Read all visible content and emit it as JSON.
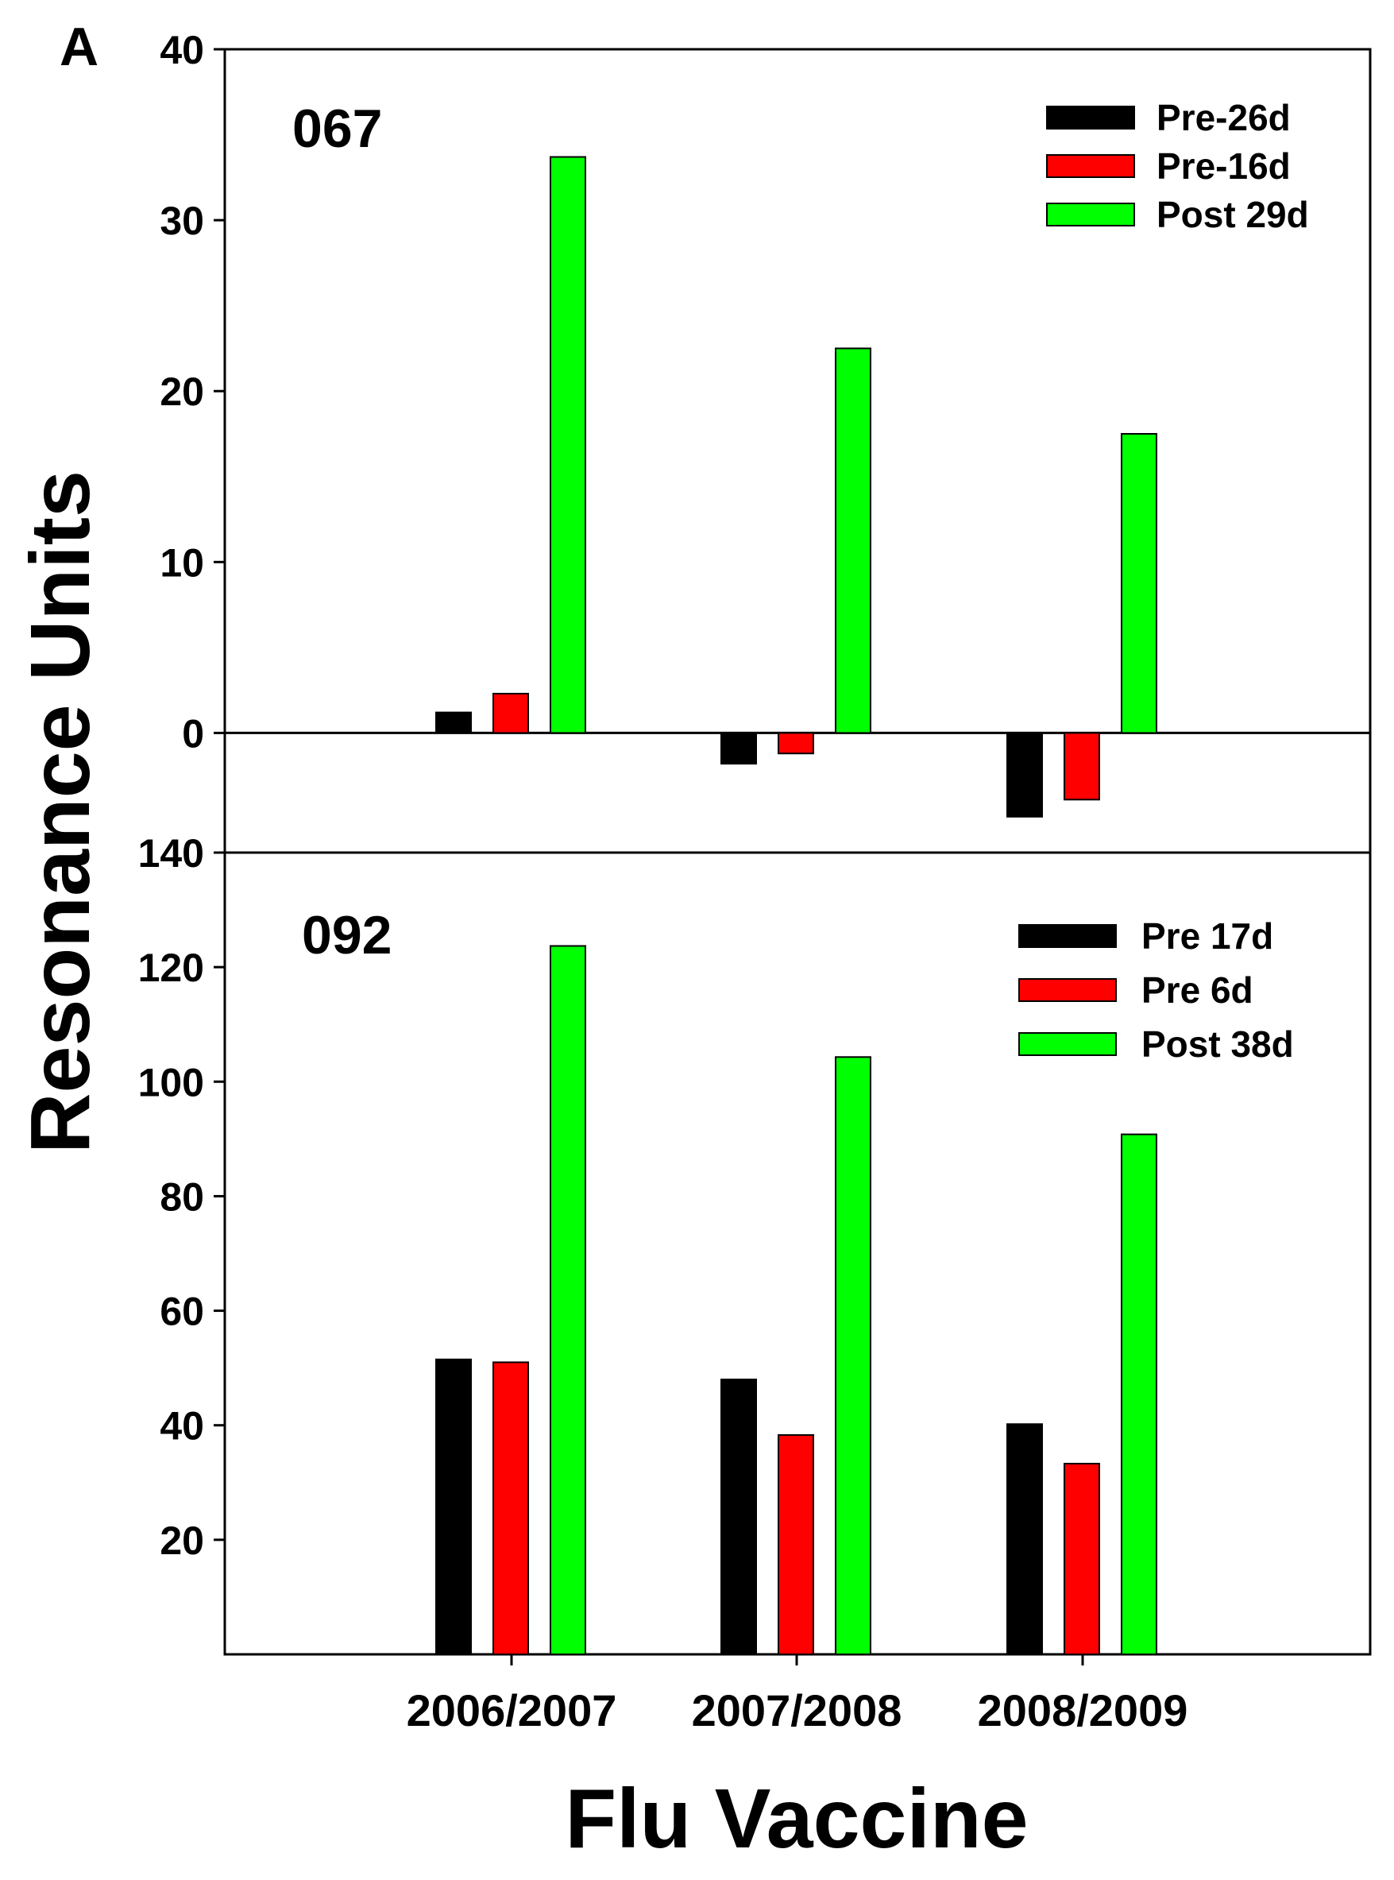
{
  "figure": {
    "panel_letter": "A",
    "ylabel": "Resonance Units",
    "xlabel": "Flu Vaccine"
  },
  "chart_data": [
    {
      "type": "bar",
      "panel_label": "067",
      "categories": [
        "2006/2007",
        "2007/2008",
        "2008/2009"
      ],
      "ylim": [
        -7,
        40
      ],
      "yticks": [
        0,
        10,
        20,
        30,
        40
      ],
      "legend_position": "top-right",
      "series": [
        {
          "name": "Pre-26d",
          "color": "#000000",
          "values": [
            1.2,
            -1.8,
            -4.9
          ]
        },
        {
          "name": "Pre-16d",
          "color": "#ff0000",
          "values": [
            2.3,
            -1.2,
            -3.9
          ]
        },
        {
          "name": "Post 29d",
          "color": "#00ff00",
          "values": [
            33.7,
            22.5,
            17.5
          ]
        }
      ]
    },
    {
      "type": "bar",
      "panel_label": "092",
      "categories": [
        "2006/2007",
        "2007/2008",
        "2008/2009"
      ],
      "ylim": [
        0,
        140
      ],
      "yticks": [
        20,
        40,
        60,
        80,
        100,
        120,
        140
      ],
      "legend_position": "top-right",
      "series": [
        {
          "name": "Pre 17d",
          "color": "#000000",
          "values": [
            51.5,
            48.0,
            40.2
          ]
        },
        {
          "name": "Pre 6d",
          "color": "#ff0000",
          "values": [
            51.0,
            38.3,
            33.3
          ]
        },
        {
          "name": "Post 38d",
          "color": "#00ff00",
          "values": [
            123.7,
            104.3,
            90.8
          ]
        }
      ]
    }
  ]
}
